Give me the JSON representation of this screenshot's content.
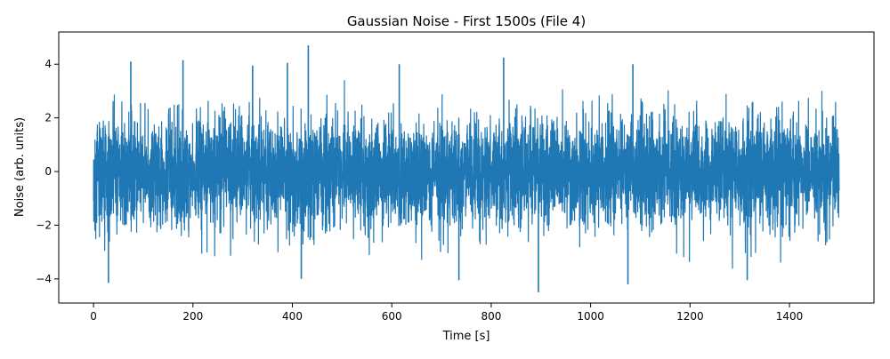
{
  "chart_data": {
    "type": "line",
    "title": "Gaussian Noise - First 1500s (File 4)",
    "xlabel": "Time [s]",
    "ylabel": "Noise (arb. units)",
    "xlim": [
      -70,
      1570
    ],
    "ylim": [
      -4.9,
      5.2
    ],
    "x_ticks": [
      0,
      200,
      400,
      600,
      800,
      1000,
      1200,
      1400
    ],
    "y_ticks": [
      -4,
      -2,
      0,
      2,
      4
    ],
    "grid": false,
    "legend": "none",
    "series": [
      {
        "color": "#1f77b4",
        "x_start": 0,
        "x_end": 1500,
        "distribution": "gaussian",
        "mean": 0,
        "std": 1,
        "observed_min": -4.5,
        "observed_max": 4.7,
        "spikes": [
          {
            "x": 30,
            "y": -4.15
          },
          {
            "x": 75,
            "y": 4.1
          },
          {
            "x": 180,
            "y": 4.15
          },
          {
            "x": 320,
            "y": 3.95
          },
          {
            "x": 390,
            "y": 4.05
          },
          {
            "x": 418,
            "y": -4.0
          },
          {
            "x": 432,
            "y": 4.7
          },
          {
            "x": 615,
            "y": 4.0
          },
          {
            "x": 735,
            "y": -4.05
          },
          {
            "x": 825,
            "y": 4.25
          },
          {
            "x": 895,
            "y": -4.5
          },
          {
            "x": 1075,
            "y": -4.2
          },
          {
            "x": 1085,
            "y": 4.0
          },
          {
            "x": 1315,
            "y": -4.05
          }
        ]
      }
    ]
  }
}
